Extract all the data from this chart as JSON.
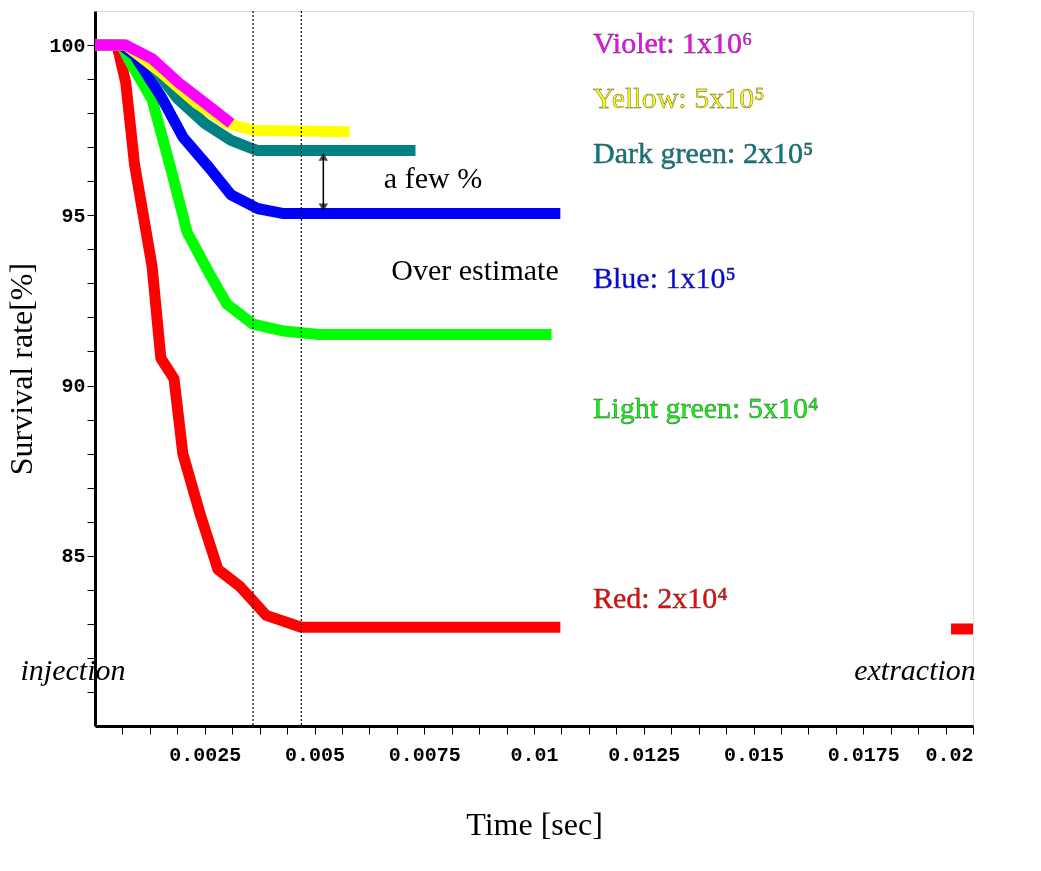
{
  "chart_data": {
    "type": "line",
    "xlabel": "Time [sec]",
    "ylabel": "Survival rate[%]",
    "xlim": [
      0,
      0.02
    ],
    "ylim": [
      80,
      101
    ],
    "xticks": [
      {
        "value": 0.000625,
        "label": null
      },
      {
        "value": 0.00125,
        "label": null
      },
      {
        "value": 0.001875,
        "label": null
      },
      0.0025,
      {
        "value": 0.003125,
        "label": null
      },
      {
        "value": 0.00375,
        "label": null
      },
      {
        "value": 0.004375,
        "label": null
      },
      0.005,
      {
        "value": 0.005625,
        "label": null
      },
      {
        "value": 0.00625,
        "label": null
      },
      {
        "value": 0.006875,
        "label": null
      },
      0.0075,
      {
        "value": 0.008125,
        "label": null
      },
      {
        "value": 0.00875,
        "label": null
      },
      {
        "value": 0.009375,
        "label": null
      },
      0.01,
      {
        "value": 0.010625,
        "label": null
      },
      {
        "value": 0.01125,
        "label": null
      },
      {
        "value": 0.011875,
        "label": null
      },
      0.0125,
      {
        "value": 0.013125,
        "label": null
      },
      {
        "value": 0.01375,
        "label": null
      },
      {
        "value": 0.014375,
        "label": null
      },
      0.015,
      {
        "value": 0.015625,
        "label": null
      },
      {
        "value": 0.01625,
        "label": null
      },
      {
        "value": 0.016875,
        "label": null
      },
      0.0175,
      {
        "value": 0.018125,
        "label": null
      },
      {
        "value": 0.01875,
        "label": null
      },
      {
        "value": 0.019375,
        "label": null
      },
      0.02
    ],
    "yticks": [
      {
        "value": 81,
        "label": null
      },
      {
        "value": 82,
        "label": null
      },
      {
        "value": 83,
        "label": null
      },
      {
        "value": 84,
        "label": null
      },
      85,
      {
        "value": 86,
        "label": null
      },
      {
        "value": 87,
        "label": null
      },
      {
        "value": 88,
        "label": null
      },
      {
        "value": 89,
        "label": null
      },
      90,
      {
        "value": 91,
        "label": null
      },
      {
        "value": 92,
        "label": null
      },
      {
        "value": 93,
        "label": null
      },
      {
        "value": 94,
        "label": null
      },
      95,
      {
        "value": 96,
        "label": null
      },
      {
        "value": 97,
        "label": null
      },
      {
        "value": 98,
        "label": null
      },
      {
        "value": 99,
        "label": null
      },
      100
    ],
    "grid": false,
    "marker": "none",
    "line_style": "solid",
    "series": [
      {
        "name": "Violet: 1x10⁶",
        "color": "#ff00ff",
        "x": [
          0,
          0.0007,
          0.0013,
          0.0019,
          0.0025,
          0.0031
        ],
        "values": [
          100,
          100,
          99.6,
          98.9,
          98.3,
          97.7
        ]
      },
      {
        "name": "Yellow: 5x10⁵",
        "color": "#ffff00",
        "x": [
          0,
          0.0007,
          0.0015,
          0.0023,
          0.003,
          0.0036,
          0.0058
        ],
        "values": [
          100,
          100,
          99.2,
          98.3,
          97.7,
          97.5,
          97.45
        ]
      },
      {
        "name": "Dark green: 2x10⁵",
        "color": "#008080",
        "x": [
          0,
          0.0007,
          0.0013,
          0.0019,
          0.0025,
          0.0031,
          0.0037,
          0.0073
        ],
        "values": [
          100,
          100,
          99.4,
          98.4,
          97.7,
          97.2,
          96.9,
          96.9
        ]
      },
      {
        "name": "Blue: 1x10⁵",
        "color": "#0000ff",
        "x": [
          0,
          0.0006,
          0.0009,
          0.0015,
          0.002,
          0.0026,
          0.0031,
          0.0037,
          0.0043,
          0.0106
        ],
        "values": [
          100,
          100,
          99.7,
          98.5,
          97.3,
          96.4,
          95.6,
          95.2,
          95.05,
          95.05
        ]
      },
      {
        "name": "Light green: 5x10⁴",
        "color": "#00ff00",
        "x": [
          0,
          0.0006,
          0.0008,
          0.0013,
          0.0017,
          0.0021,
          0.0026,
          0.003,
          0.0036,
          0.0043,
          0.0051,
          0.0104
        ],
        "values": [
          100,
          100,
          99.5,
          98.4,
          96.5,
          94.5,
          93.3,
          92.4,
          91.8,
          91.6,
          91.5,
          91.5
        ]
      },
      {
        "name": "Red: 2x10⁴",
        "color": "#ff0000",
        "x": [
          0,
          0.0005,
          0.0007,
          0.0009,
          0.0013,
          0.0015,
          0.0018,
          0.002,
          0.0024,
          0.0028,
          0.0033,
          0.0039,
          0.0047,
          0.0106,
          0.015,
          0.0195,
          0.02
        ],
        "values": [
          100,
          100,
          98.9,
          96.5,
          93.5,
          90.8,
          90.2,
          88.0,
          86.2,
          84.6,
          84.1,
          83.25,
          82.9,
          82.9,
          null,
          82.85,
          82.85
        ]
      }
    ],
    "ref_lines": [
      {
        "axis": "x",
        "value": 0.0036,
        "color": "#000000",
        "line_style": "dotted"
      },
      {
        "axis": "x",
        "value": 0.0047,
        "color": "#000000",
        "line_style": "dotted"
      }
    ],
    "annotations": [
      "injection",
      "extraction",
      "a few %",
      "Over estimate"
    ]
  }
}
